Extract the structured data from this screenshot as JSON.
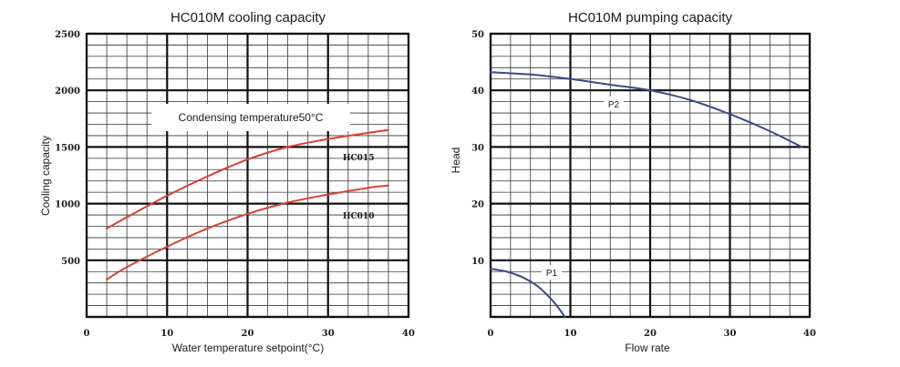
{
  "chart_data": [
    {
      "type": "line",
      "title": "HC010M cooling capacity",
      "xlabel": "Water temperature setpoint(°C)",
      "ylabel": "Cooling capacity",
      "xlim": [
        0,
        40
      ],
      "ylim": [
        0,
        2500
      ],
      "xticks": [
        0,
        10,
        20,
        30,
        40
      ],
      "yticks": [
        500,
        1000,
        1500,
        2000,
        2500
      ],
      "grid": true,
      "annotation": "Condensing temperature50°C",
      "series": [
        {
          "name": "HC015",
          "color": "#d8412f",
          "x": [
            2.5,
            5,
            10,
            15,
            20,
            25,
            30,
            35,
            37.5
          ],
          "y": [
            780,
            880,
            1070,
            1240,
            1390,
            1500,
            1570,
            1625,
            1650
          ]
        },
        {
          "name": "HC010",
          "color": "#d8412f",
          "x": [
            2.5,
            5,
            10,
            15,
            20,
            25,
            30,
            35,
            37.5
          ],
          "y": [
            330,
            440,
            620,
            780,
            910,
            1010,
            1080,
            1140,
            1160
          ]
        }
      ]
    },
    {
      "type": "line",
      "title": "HC010M pumping capacity",
      "xlabel": "Flow rate",
      "ylabel": "Head",
      "xlim": [
        0,
        40
      ],
      "ylim": [
        0,
        50
      ],
      "xticks": [
        0,
        10,
        20,
        30,
        40
      ],
      "yticks": [
        10,
        20,
        30,
        40,
        50
      ],
      "grid": true,
      "series": [
        {
          "name": "P2",
          "color": "#3a4a8c",
          "x": [
            0,
            5,
            10,
            15,
            20,
            25,
            30,
            35,
            39
          ],
          "y": [
            43.2,
            42.8,
            42.0,
            41.0,
            40.0,
            38.3,
            35.8,
            32.8,
            30.0
          ]
        },
        {
          "name": "P1",
          "color": "#3a4a8c",
          "x": [
            0,
            2,
            4,
            6,
            8,
            9.3
          ],
          "y": [
            8.5,
            8.0,
            7.0,
            5.3,
            2.5,
            0
          ]
        }
      ]
    }
  ]
}
